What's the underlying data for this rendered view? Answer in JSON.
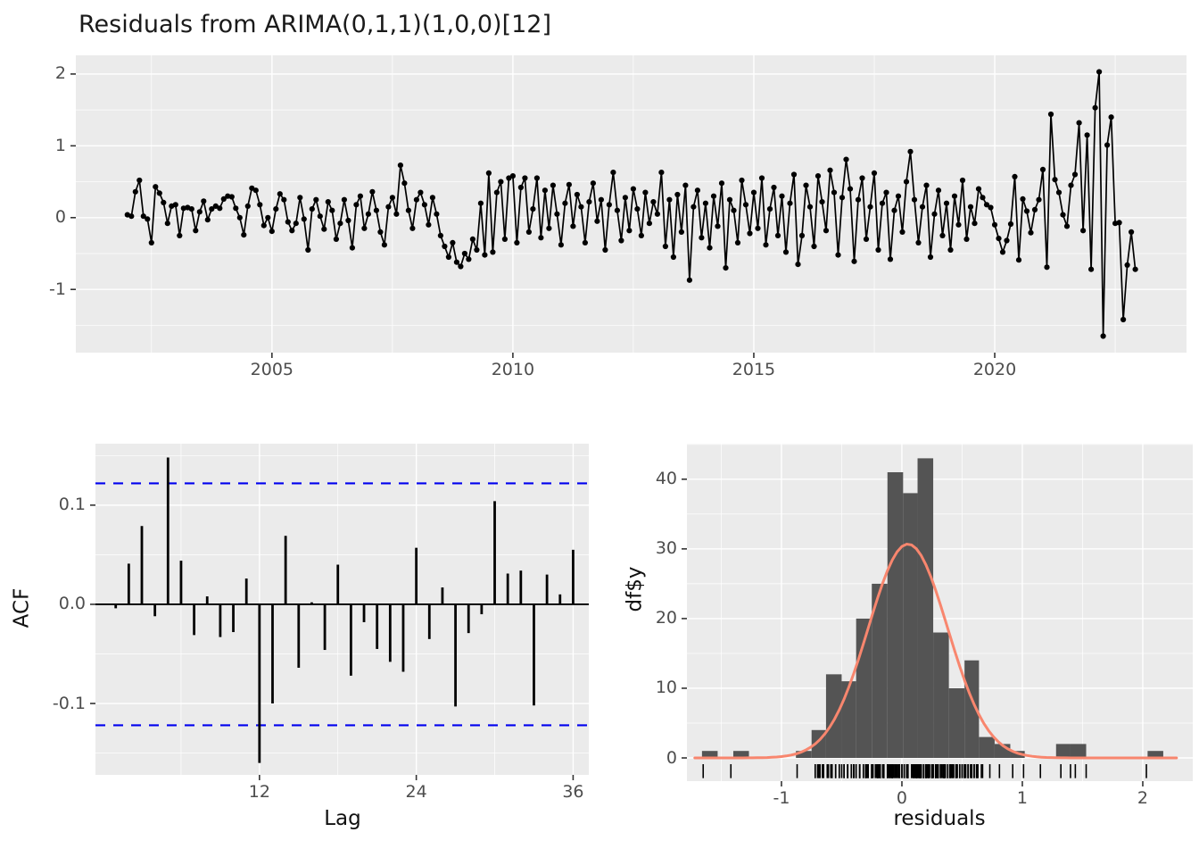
{
  "title": "Residuals from ARIMA(0,1,1)(1,0,0)[12]",
  "colors": {
    "panel_bg": "#EBEBEB",
    "grid": "#FFFFFF",
    "series": "#000000",
    "acf_bar": "#000000",
    "conf_line": "#0000EE",
    "hist_fill": "#545454",
    "normal_curve": "#F8866E",
    "rug": "#000000",
    "tick_text": "#4D4D4D",
    "tick_mark": "#333333"
  },
  "chart_data": [
    {
      "type": "line",
      "name": "residuals-time-series",
      "title": "Residuals from ARIMA(0,1,1)(1,0,0)[12]",
      "xlabel": "",
      "ylabel": "",
      "x_start": 2002.0,
      "x_step": 0.0833333,
      "xlim": [
        2000.93,
        2023.98
      ],
      "ylim": [
        -1.88,
        2.26
      ],
      "x_tick_values": [
        2005,
        2010,
        2015,
        2020
      ],
      "x_tick_labels": [
        "2005",
        "2010",
        "2015",
        "2020"
      ],
      "x_minor_gridlines": [
        2002.5,
        2007.5,
        2012.5,
        2017.5,
        2022.5
      ],
      "y_tick_values": [
        2,
        1,
        0,
        -1
      ],
      "y_tick_labels": [
        "2",
        "1",
        "0",
        "-1"
      ],
      "y_minor_gridlines": [
        1.5,
        0.5,
        -0.5,
        -1.5
      ],
      "marker": "point",
      "values": [
        0.04,
        0.02,
        0.36,
        0.52,
        0.02,
        -0.02,
        -0.35,
        0.43,
        0.34,
        0.21,
        -0.08,
        0.16,
        0.18,
        -0.25,
        0.13,
        0.14,
        0.12,
        -0.18,
        0.08,
        0.23,
        -0.03,
        0.12,
        0.16,
        0.13,
        0.26,
        0.3,
        0.29,
        0.13,
        0.0,
        -0.24,
        0.16,
        0.41,
        0.38,
        0.18,
        -0.11,
        0.0,
        -0.19,
        0.12,
        0.33,
        0.25,
        -0.06,
        -0.18,
        -0.08,
        0.28,
        -0.02,
        -0.45,
        0.12,
        0.25,
        0.02,
        -0.16,
        0.22,
        0.1,
        -0.3,
        -0.08,
        0.25,
        -0.04,
        -0.42,
        0.18,
        0.3,
        -0.15,
        0.05,
        0.36,
        0.1,
        -0.2,
        -0.38,
        0.15,
        0.28,
        0.05,
        0.73,
        0.48,
        0.1,
        -0.15,
        0.25,
        0.35,
        0.18,
        -0.1,
        0.28,
        0.05,
        -0.25,
        -0.4,
        -0.55,
        -0.35,
        -0.62,
        -0.68,
        -0.5,
        -0.58,
        -0.3,
        -0.45,
        0.2,
        -0.52,
        0.62,
        -0.48,
        0.35,
        0.5,
        -0.3,
        0.55,
        0.58,
        -0.35,
        0.42,
        0.55,
        -0.2,
        0.12,
        0.55,
        -0.28,
        0.38,
        -0.15,
        0.45,
        0.05,
        -0.38,
        0.2,
        0.46,
        -0.12,
        0.32,
        0.15,
        -0.35,
        0.22,
        0.48,
        -0.05,
        0.25,
        -0.45,
        0.18,
        0.63,
        0.1,
        -0.32,
        0.28,
        -0.18,
        0.4,
        0.12,
        -0.25,
        0.35,
        -0.08,
        0.22,
        0.05,
        0.63,
        -0.4,
        0.25,
        -0.55,
        0.32,
        -0.2,
        0.45,
        -0.87,
        0.15,
        0.38,
        -0.28,
        0.2,
        -0.42,
        0.3,
        -0.12,
        0.48,
        -0.7,
        0.25,
        0.1,
        -0.35,
        0.52,
        0.18,
        -0.22,
        0.35,
        -0.15,
        0.55,
        -0.38,
        0.12,
        0.42,
        -0.25,
        0.3,
        -0.48,
        0.2,
        0.6,
        -0.65,
        -0.25,
        0.45,
        0.15,
        -0.4,
        0.58,
        0.22,
        -0.18,
        0.66,
        0.35,
        -0.52,
        0.28,
        0.81,
        0.4,
        -0.61,
        0.25,
        0.55,
        -0.3,
        0.15,
        0.62,
        -0.45,
        0.2,
        0.35,
        -0.58,
        0.1,
        0.3,
        -0.2,
        0.5,
        0.92,
        0.25,
        -0.35,
        0.15,
        0.45,
        -0.55,
        0.05,
        0.38,
        -0.25,
        0.2,
        -0.45,
        0.3,
        -0.1,
        0.52,
        -0.3,
        0.15,
        -0.08,
        0.4,
        0.28,
        0.18,
        0.14,
        -0.1,
        -0.29,
        -0.48,
        -0.32,
        -0.09,
        0.57,
        -0.59,
        0.26,
        0.09,
        -0.21,
        0.11,
        0.25,
        0.67,
        -0.69,
        1.44,
        0.53,
        0.35,
        0.04,
        -0.12,
        0.45,
        0.6,
        1.32,
        -0.18,
        1.15,
        -0.72,
        1.53,
        2.03,
        -1.65,
        1.01,
        1.4,
        -0.08,
        -0.07,
        -1.42,
        -0.66,
        -0.2,
        -0.72
      ]
    },
    {
      "type": "bar",
      "name": "acf",
      "xlabel": "Lag",
      "ylabel": "ACF",
      "xlim": [
        -0.55,
        37.2
      ],
      "ylim": [
        -0.172,
        0.162
      ],
      "x_tick_values": [
        12,
        24,
        36
      ],
      "x_tick_labels": [
        "12",
        "24",
        "36"
      ],
      "x_minor_gridlines": [
        6,
        18,
        30
      ],
      "y_tick_values": [
        0.1,
        0.0,
        -0.1
      ],
      "y_tick_labels": [
        "0.1",
        "0.0",
        "-0.1"
      ],
      "y_minor_gridlines": [
        0.15,
        0.05,
        -0.05,
        -0.15
      ],
      "confidence_bounds": [
        0.122,
        -0.122
      ],
      "lags": [
        1,
        2,
        3,
        4,
        5,
        6,
        7,
        8,
        9,
        10,
        11,
        12,
        13,
        14,
        15,
        16,
        17,
        18,
        19,
        20,
        21,
        22,
        23,
        24,
        25,
        26,
        27,
        28,
        29,
        30,
        31,
        32,
        33,
        34,
        35,
        36
      ],
      "values": [
        -0.004,
        0.041,
        0.079,
        -0.012,
        0.148,
        0.044,
        -0.031,
        0.008,
        -0.033,
        -0.028,
        0.026,
        -0.16,
        -0.1,
        0.069,
        -0.064,
        0.002,
        -0.046,
        0.04,
        -0.072,
        -0.018,
        -0.045,
        -0.058,
        -0.068,
        0.057,
        -0.035,
        0.017,
        -0.103,
        -0.029,
        -0.01,
        0.104,
        0.031,
        0.034,
        -0.102,
        0.03,
        0.01,
        0.055
      ]
    },
    {
      "type": "histogram",
      "name": "residuals-histogram",
      "xlabel": "residuals",
      "ylabel": "df$y",
      "xlim": [
        -1.785,
        2.415
      ],
      "ylim": [
        -3.33,
        45.1
      ],
      "x_tick_values": [
        -1,
        0,
        1,
        2
      ],
      "x_tick_labels": [
        "-1",
        "0",
        "1",
        "2"
      ],
      "x_minor_gridlines": [
        -1.5,
        -0.5,
        0.5,
        1.5
      ],
      "y_tick_values": [
        0,
        10,
        20,
        30,
        40
      ],
      "y_tick_labels": [
        "0",
        "10",
        "20",
        "30",
        "40"
      ],
      "y_minor_gridlines": [
        5,
        15,
        25,
        35,
        45
      ],
      "bins": [
        {
          "x0": -1.66,
          "x1": -1.53,
          "count": 1
        },
        {
          "x0": -1.4,
          "x1": -1.27,
          "count": 1
        },
        {
          "x0": -0.88,
          "x1": -0.75,
          "count": 1
        },
        {
          "x0": -0.75,
          "x1": -0.63,
          "count": 4
        },
        {
          "x0": -0.63,
          "x1": -0.5,
          "count": 12
        },
        {
          "x0": -0.5,
          "x1": -0.38,
          "count": 11
        },
        {
          "x0": -0.38,
          "x1": -0.25,
          "count": 20
        },
        {
          "x0": -0.25,
          "x1": -0.12,
          "count": 25
        },
        {
          "x0": -0.12,
          "x1": 0.01,
          "count": 41
        },
        {
          "x0": 0.01,
          "x1": 0.13,
          "count": 38
        },
        {
          "x0": 0.13,
          "x1": 0.26,
          "count": 43
        },
        {
          "x0": 0.26,
          "x1": 0.39,
          "count": 18
        },
        {
          "x0": 0.39,
          "x1": 0.52,
          "count": 10
        },
        {
          "x0": 0.52,
          "x1": 0.64,
          "count": 14
        },
        {
          "x0": 0.64,
          "x1": 0.77,
          "count": 3
        },
        {
          "x0": 0.77,
          "x1": 0.9,
          "count": 2
        },
        {
          "x0": 0.9,
          "x1": 1.02,
          "count": 1
        },
        {
          "x0": 1.28,
          "x1": 1.4,
          "count": 2
        },
        {
          "x0": 1.4,
          "x1": 1.53,
          "count": 2
        },
        {
          "x0": 2.04,
          "x1": 2.17,
          "count": 1
        }
      ],
      "normal_curve": {
        "mean": 0.05,
        "sd": 0.33,
        "peak": 30.7
      },
      "rug": "series-values"
    }
  ]
}
